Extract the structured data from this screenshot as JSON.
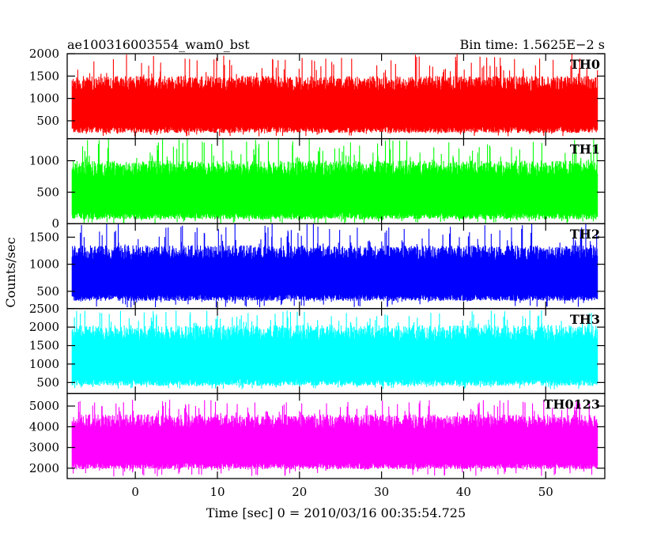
{
  "chart_data": {
    "type": "line",
    "title": "ae100316003554_wam0_bst",
    "bin_time_label": "Bin time: 1.5625E−2 s",
    "xlabel": "Time [sec] 0 = 2010/03/16 00:35:54.725",
    "ylabel": "Counts/sec",
    "xlim": [
      -8.3,
      57.2
    ],
    "x_data_range": [
      -7.7,
      56.3
    ],
    "x_ticks": [
      0,
      10,
      20,
      30,
      40,
      50
    ],
    "x_tick_labels": [
      "0",
      "10",
      "20",
      "30",
      "40",
      "50"
    ],
    "grid": false,
    "panels": [
      {
        "name": "TH0",
        "color": "#ff0000",
        "ylim": [
          100,
          2000
        ],
        "y_ticks": [
          500,
          1000,
          1500,
          2000
        ],
        "y_tick_labels": [
          "500",
          "1000",
          "1500",
          "2000"
        ],
        "typical_min": 300,
        "typical_max": 1500,
        "peak_min": 150,
        "peak_max": 2000
      },
      {
        "name": "TH1",
        "color": "#00ff00",
        "ylim": [
          0,
          1350
        ],
        "y_ticks": [
          0,
          500,
          1000
        ],
        "y_tick_labels": [
          "0",
          "500",
          "1000"
        ],
        "typical_min": 120,
        "typical_max": 1000,
        "peak_min": 0,
        "peak_max": 1350
      },
      {
        "name": "TH2",
        "color": "#0000ff",
        "ylim": [
          180,
          1750
        ],
        "y_ticks": [
          500,
          1000,
          1500
        ],
        "y_tick_labels": [
          "500",
          "1000",
          "1500"
        ],
        "typical_min": 380,
        "typical_max": 1350,
        "peak_min": 200,
        "peak_max": 1750
      },
      {
        "name": "TH3",
        "color": "#00ffff",
        "ylim": [
          200,
          2500
        ],
        "y_ticks": [
          500,
          1000,
          1500,
          2000,
          2500
        ],
        "y_tick_labels": [
          "500",
          "1000",
          "1500",
          "2000",
          "2500"
        ],
        "typical_min": 500,
        "typical_max": 2050,
        "peak_min": 320,
        "peak_max": 2450
      },
      {
        "name": "TH0123",
        "color": "#ff00ff",
        "ylim": [
          1500,
          5600
        ],
        "y_ticks": [
          2000,
          3000,
          4000,
          5000
        ],
        "y_tick_labels": [
          "2000",
          "3000",
          "4000",
          "5000"
        ],
        "typical_min": 2100,
        "typical_max": 4600,
        "peak_min": 1600,
        "peak_max": 5300
      }
    ]
  }
}
